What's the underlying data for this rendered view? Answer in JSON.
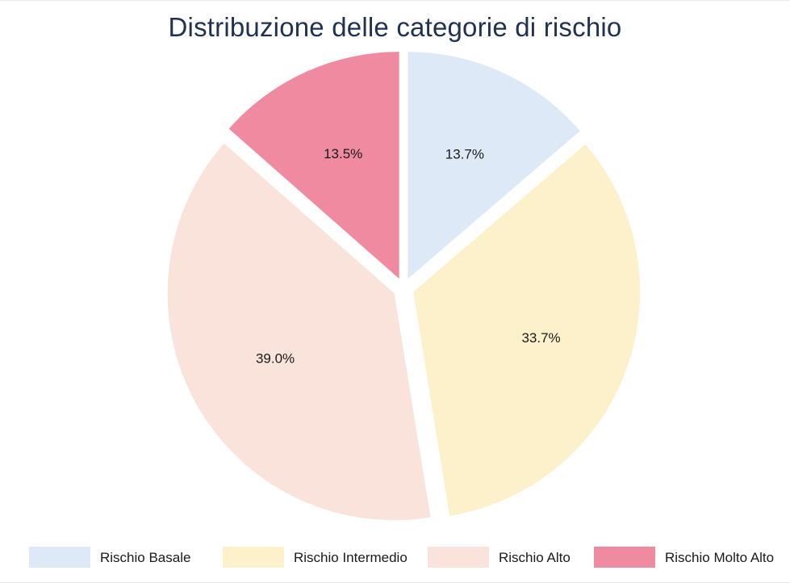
{
  "chart_data": {
    "type": "pie",
    "title": "Distribuzione delle categorie di rischio",
    "slices": [
      {
        "label": "Rischio Basale",
        "value": 13.7,
        "display": "13.7%",
        "color": "#dde9f6"
      },
      {
        "label": "Rischio Intermedio",
        "value": 33.7,
        "display": "33.7%",
        "color": "#fdf1cc"
      },
      {
        "label": "Rischio Alto",
        "value": 39.0,
        "display": "39.0%",
        "color": "#fae3da"
      },
      {
        "label": "Rischio Molto Alto",
        "value": 13.5,
        "display": "13.5%",
        "color": "#f08aa0"
      }
    ],
    "legend_position": "bottom",
    "exploded": true
  }
}
